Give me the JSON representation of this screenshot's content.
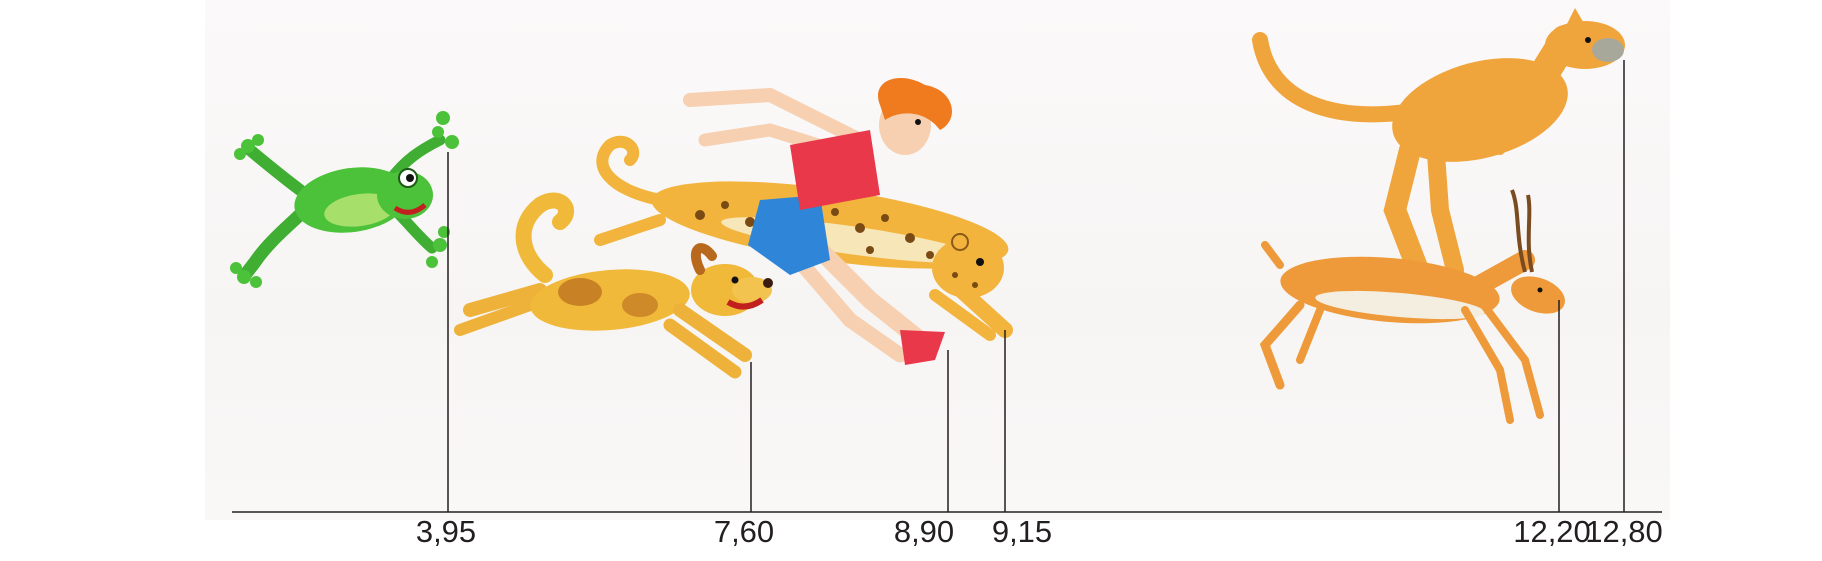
{
  "jumps": [
    {
      "value": "3,95",
      "animal": "frog"
    },
    {
      "value": "7,60",
      "animal": "dog"
    },
    {
      "value": "8,90",
      "animal": "boy"
    },
    {
      "value": "9,15",
      "animal": "leopard"
    },
    {
      "value": "12,20",
      "animal": "gazelle"
    },
    {
      "value": "12,80",
      "animal": "kangaroo"
    }
  ],
  "colors": {
    "line": "#231f20",
    "frog": "#4cc23a",
    "dog": "#f0b93a",
    "leopard": "#f2b43c",
    "kangaroo": "#f0a43c",
    "gazelle": "#ee9a3a",
    "shirt": "#e8384a",
    "shorts": "#2f86d8",
    "hair": "#f07a1e"
  }
}
